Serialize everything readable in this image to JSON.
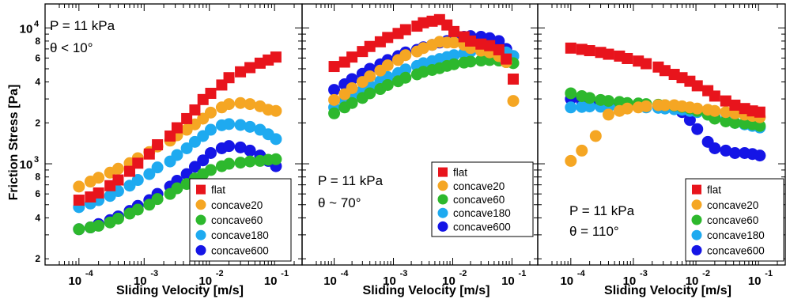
{
  "figure": {
    "ylabel": "Friction Stress [Pa]",
    "xlabel": "Sliding Velocity [m/s]"
  },
  "colors": {
    "flat": "#e8141c",
    "concave20": "#f5a623",
    "concave60": "#2db82d",
    "concave180": "#1eaaf0",
    "concave600": "#1515e6"
  },
  "chart_data": [
    {
      "type": "scatter",
      "annotation": [
        "P = 11 kPa",
        "θ < 10°"
      ],
      "xlabel": "Sliding Velocity [m/s]",
      "ylabel": "Friction Stress [Pa]",
      "xscale": "log",
      "yscale": "log",
      "xlim": [
        5e-05,
        0.2
      ],
      "ylim": [
        180,
        15000
      ],
      "legend_position": "bottom-right",
      "series": [
        {
          "name": "flat",
          "marker": "square",
          "x": [
            0.0001,
            0.00015,
            0.0002,
            0.0003,
            0.0004,
            0.0006,
            0.0008,
            0.0012,
            0.0016,
            0.0025,
            0.0032,
            0.0045,
            0.006,
            0.008,
            0.0105,
            0.0155,
            0.02,
            0.03,
            0.042,
            0.06,
            0.08,
            0.105
          ],
          "y": [
            540,
            570,
            610,
            690,
            760,
            880,
            1010,
            1180,
            1380,
            1600,
            1840,
            2150,
            2490,
            2970,
            3300,
            3800,
            4300,
            4750,
            5100,
            5500,
            5800,
            6100
          ]
        },
        {
          "name": "concave20",
          "marker": "circle",
          "x": [
            0.0001,
            0.00015,
            0.0002,
            0.0003,
            0.0004,
            0.0006,
            0.0008,
            0.0012,
            0.0016,
            0.0025,
            0.0032,
            0.0045,
            0.006,
            0.008,
            0.0105,
            0.0155,
            0.02,
            0.03,
            0.042,
            0.06,
            0.08,
            0.105
          ],
          "y": [
            680,
            740,
            790,
            860,
            920,
            1010,
            1100,
            1220,
            1340,
            1480,
            1620,
            1780,
            1950,
            2150,
            2380,
            2600,
            2750,
            2800,
            2750,
            2650,
            2500,
            2450
          ]
        },
        {
          "name": "concave60",
          "marker": "circle",
          "x": [
            0.0001,
            0.00015,
            0.0002,
            0.0003,
            0.0004,
            0.0006,
            0.0008,
            0.0012,
            0.0016,
            0.0025,
            0.0032,
            0.0045,
            0.006,
            0.008,
            0.0105,
            0.0155,
            0.02,
            0.03,
            0.042,
            0.06,
            0.08,
            0.105
          ],
          "y": [
            330,
            340,
            350,
            370,
            395,
            430,
            460,
            500,
            550,
            600,
            660,
            710,
            780,
            840,
            900,
            960,
            1000,
            1020,
            1040,
            1050,
            1070,
            1080
          ]
        },
        {
          "name": "concave180",
          "marker": "circle",
          "x": [
            0.0001,
            0.00015,
            0.0002,
            0.0003,
            0.0004,
            0.0006,
            0.0008,
            0.0012,
            0.0016,
            0.0025,
            0.0032,
            0.0045,
            0.006,
            0.008,
            0.0105,
            0.0155,
            0.02,
            0.03,
            0.042,
            0.06,
            0.08,
            0.105
          ],
          "y": [
            480,
            510,
            540,
            580,
            630,
            690,
            760,
            840,
            940,
            1040,
            1160,
            1300,
            1450,
            1600,
            1780,
            1920,
            1960,
            1930,
            1870,
            1780,
            1650,
            1520
          ]
        },
        {
          "name": "concave600",
          "marker": "circle",
          "x": [
            0.0001,
            0.00015,
            0.0002,
            0.0003,
            0.0004,
            0.0006,
            0.0008,
            0.0012,
            0.0016,
            0.0025,
            0.0032,
            0.0045,
            0.006,
            0.008,
            0.0105,
            0.0155,
            0.02,
            0.03,
            0.042,
            0.06,
            0.08,
            0.105
          ],
          "y": [
            330,
            340,
            360,
            385,
            410,
            450,
            490,
            540,
            600,
            680,
            750,
            840,
            950,
            1060,
            1200,
            1300,
            1350,
            1320,
            1250,
            1150,
            1050,
            960
          ]
        }
      ]
    },
    {
      "type": "scatter",
      "annotation": [
        "P = 11 kPa",
        "θ ~ 70°"
      ],
      "xlabel": "Sliding Velocity [m/s]",
      "xscale": "log",
      "yscale": "log",
      "xlim": [
        5e-05,
        0.2
      ],
      "ylim": [
        180,
        15000
      ],
      "legend_position": "center-right",
      "series": [
        {
          "name": "flat",
          "marker": "square",
          "x": [
            0.0001,
            0.00015,
            0.0002,
            0.0003,
            0.0004,
            0.0006,
            0.0008,
            0.0012,
            0.0016,
            0.0025,
            0.0032,
            0.0045,
            0.006,
            0.008,
            0.0105,
            0.0155,
            0.02,
            0.03,
            0.042,
            0.06,
            0.08,
            0.105
          ],
          "y": [
            5200,
            5600,
            6100,
            6700,
            7300,
            7900,
            8500,
            9100,
            9700,
            10300,
            10900,
            11200,
            11500,
            10500,
            9400,
            8600,
            8000,
            7600,
            7400,
            6900,
            5900,
            4200
          ]
        },
        {
          "name": "concave20",
          "marker": "circle",
          "x": [
            0.0001,
            0.00015,
            0.0002,
            0.0003,
            0.0004,
            0.0006,
            0.0008,
            0.0012,
            0.0016,
            0.0025,
            0.0032,
            0.0045,
            0.006,
            0.008,
            0.0105,
            0.0155,
            0.02,
            0.03,
            0.042,
            0.06,
            0.08,
            0.105
          ],
          "y": [
            2950,
            3250,
            3600,
            4000,
            4400,
            4850,
            5300,
            5800,
            6300,
            6700,
            7100,
            7500,
            7900,
            7800,
            7800,
            7500,
            7100,
            6800,
            6600,
            6200,
            5600,
            2900
          ]
        },
        {
          "name": "concave60",
          "marker": "circle",
          "x": [
            0.0001,
            0.00015,
            0.0002,
            0.0003,
            0.0004,
            0.0006,
            0.0008,
            0.0012,
            0.0016,
            0.0025,
            0.0032,
            0.0045,
            0.006,
            0.008,
            0.0105,
            0.0155,
            0.02,
            0.03,
            0.042,
            0.06,
            0.08,
            0.105
          ],
          "y": [
            2350,
            2600,
            2800,
            3050,
            3300,
            3550,
            3800,
            4050,
            4300,
            4550,
            4750,
            4900,
            5050,
            5250,
            5400,
            5550,
            5650,
            5750,
            5800,
            5750,
            5600,
            5500
          ]
        },
        {
          "name": "concave180",
          "marker": "circle",
          "x": [
            0.0001,
            0.00015,
            0.0002,
            0.0003,
            0.0004,
            0.0006,
            0.0008,
            0.0012,
            0.0016,
            0.0025,
            0.0032,
            0.0045,
            0.006,
            0.008,
            0.0105,
            0.0155,
            0.02,
            0.03,
            0.042,
            0.06,
            0.08,
            0.105
          ],
          "y": [
            2600,
            2900,
            3150,
            3450,
            3750,
            4050,
            4350,
            4650,
            4950,
            5250,
            5500,
            5700,
            5900,
            6100,
            6300,
            6500,
            6700,
            6800,
            6900,
            6800,
            6600,
            6200
          ]
        },
        {
          "name": "concave600",
          "marker": "circle",
          "x": [
            0.0001,
            0.00015,
            0.0002,
            0.0003,
            0.0004,
            0.0006,
            0.0008,
            0.0012,
            0.0016,
            0.0025,
            0.0032,
            0.0045,
            0.006,
            0.008,
            0.0105,
            0.0155,
            0.02,
            0.03,
            0.042,
            0.06,
            0.08,
            0.105
          ],
          "y": [
            3500,
            3850,
            4200,
            4600,
            5000,
            5400,
            5800,
            6200,
            6600,
            6900,
            7200,
            7500,
            7800,
            8000,
            8300,
            8600,
            8700,
            8600,
            8400,
            8000,
            7000,
            6200
          ]
        }
      ]
    },
    {
      "type": "scatter",
      "annotation": [
        "P = 11 kPa",
        "θ = 110°"
      ],
      "xlabel": "Sliding Velocity [m/s]",
      "xscale": "log",
      "yscale": "log",
      "xlim": [
        5e-05,
        0.2
      ],
      "ylim": [
        180,
        15000
      ],
      "legend_position": "bottom-right",
      "series": [
        {
          "name": "flat",
          "marker": "square",
          "x": [
            0.0001,
            0.00015,
            0.0002,
            0.0003,
            0.0004,
            0.0006,
            0.0008,
            0.0012,
            0.0016,
            0.0025,
            0.0032,
            0.0045,
            0.006,
            0.008,
            0.0105,
            0.0155,
            0.02,
            0.03,
            0.042,
            0.06,
            0.08,
            0.105
          ],
          "y": [
            7100,
            6950,
            6800,
            6600,
            6400,
            6200,
            5950,
            5700,
            5450,
            5150,
            4850,
            4550,
            4300,
            4050,
            3750,
            3450,
            3150,
            2900,
            2700,
            2550,
            2450,
            2400
          ]
        },
        {
          "name": "concave20",
          "marker": "circle",
          "x": [
            0.0001,
            0.00015,
            0.00025,
            0.0004,
            0.0006,
            0.0008,
            0.0012,
            0.0016,
            0.0025,
            0.0032,
            0.0045,
            0.006,
            0.008,
            0.0105,
            0.0155,
            0.02,
            0.03,
            0.042,
            0.06,
            0.08,
            0.105
          ],
          "y": [
            1050,
            1250,
            1600,
            2300,
            2450,
            2550,
            2600,
            2650,
            2700,
            2700,
            2700,
            2650,
            2600,
            2550,
            2500,
            2450,
            2400,
            2350,
            2300,
            2250,
            2200
          ]
        },
        {
          "name": "concave60",
          "marker": "circle",
          "x": [
            0.0001,
            0.00015,
            0.0002,
            0.0003,
            0.0004,
            0.0006,
            0.0008,
            0.0012,
            0.0016,
            0.0025,
            0.0032,
            0.0045,
            0.006,
            0.008,
            0.0105,
            0.0155,
            0.02,
            0.03,
            0.042,
            0.06,
            0.08,
            0.105
          ],
          "y": [
            3300,
            3150,
            3050,
            2950,
            2900,
            2850,
            2800,
            2780,
            2750,
            2720,
            2700,
            2680,
            2620,
            2550,
            2450,
            2300,
            2150,
            2050,
            2000,
            1980,
            1950,
            1900
          ]
        },
        {
          "name": "concave180",
          "marker": "circle",
          "x": [
            0.0001,
            0.00015,
            0.0002,
            0.0003,
            0.0004,
            0.0006,
            0.0008,
            0.0012,
            0.0016,
            0.0025,
            0.0032,
            0.0045,
            0.006,
            0.008,
            0.0105,
            0.0155,
            0.02,
            0.03,
            0.042,
            0.06,
            0.08,
            0.105
          ],
          "y": [
            2600,
            2620,
            2640,
            2630,
            2620,
            2600,
            2600,
            2620,
            2600,
            2580,
            2550,
            2520,
            2500,
            2450,
            2400,
            2300,
            2200,
            2100,
            2000,
            1950,
            1900,
            1850
          ]
        },
        {
          "name": "concave600",
          "marker": "circle",
          "x": [
            0.0001,
            0.00015,
            0.0002,
            0.0003,
            0.0004,
            0.0006,
            0.0008,
            0.0012,
            0.0016,
            0.0025,
            0.0032,
            0.0045,
            0.006,
            0.008,
            0.0105,
            0.0155,
            0.02,
            0.03,
            0.042,
            0.06,
            0.08,
            0.105
          ],
          "y": [
            3000,
            2900,
            2850,
            2800,
            2750,
            2700,
            2650,
            2650,
            2650,
            2620,
            2600,
            2550,
            2400,
            2100,
            1800,
            1450,
            1300,
            1250,
            1200,
            1200,
            1180,
            1150
          ]
        }
      ]
    }
  ]
}
